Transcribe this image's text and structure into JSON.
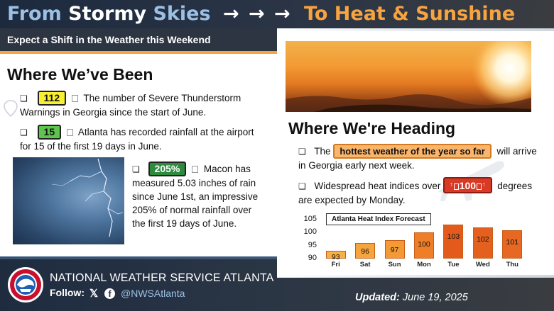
{
  "header": {
    "title_from": "From",
    "title_stormy": "Stormy",
    "title_skies": "Skies",
    "title_arrows": "→ → →",
    "title_to": "To Heat & Sunshine",
    "subtitle": "Expect a Shift in the Weather this Weekend"
  },
  "left": {
    "heading": "Where We’ve Been",
    "items": [
      {
        "badge": "112",
        "text": "The number of Severe Thunderstorm Warnings in Georgia since the start of June."
      },
      {
        "badge": "15",
        "text": "Atlanta has recorded rainfall at the airport for 15 of the first 19 days in June."
      },
      {
        "badge": "205%",
        "text": "Macon has measured 5.03 inches of rain since June 1st, an impressive 205% of normal rainfall over the first 19 days of June."
      }
    ]
  },
  "right": {
    "heading": "Where We're Heading",
    "item1_pre": "The",
    "item1_badge": "hottest weather of the year so far",
    "item1_post": "will arrive in Georgia early next week.",
    "item2_pre": "Widespread heat indices over",
    "item2_badge": "100",
    "item2_post": "degrees are expected by Monday."
  },
  "chart_data": {
    "type": "bar",
    "title": "Atlanta Heat Index Forecast",
    "categories": [
      "Fri",
      "Sat",
      "Sun",
      "Mon",
      "Tue",
      "Wed",
      "Thu"
    ],
    "values": [
      93,
      96,
      97,
      100,
      103,
      102,
      101
    ],
    "ylim": [
      90,
      105
    ],
    "yticks": [
      90,
      95,
      100,
      105
    ],
    "xlabel": "",
    "ylabel": "",
    "colors": [
      "#f6b043",
      "#f5a53c",
      "#f49a35",
      "#ef7e28",
      "#e35a1c",
      "#e4601f",
      "#e76823"
    ]
  },
  "footer": {
    "org": "NATIONAL WEATHER SERVICE ATLANTA",
    "follow": "Follow:",
    "x_icon": "x-icon",
    "facebook_icon": "facebook-icon",
    "handle": "@NWSAtlanta",
    "updated_label": "Updated:",
    "updated_date": "June 19, 2025"
  },
  "colors": {
    "accent_orange": "#f6a340",
    "accent_blue": "#9cc0e4",
    "dark_navy": "#1f2c40"
  }
}
